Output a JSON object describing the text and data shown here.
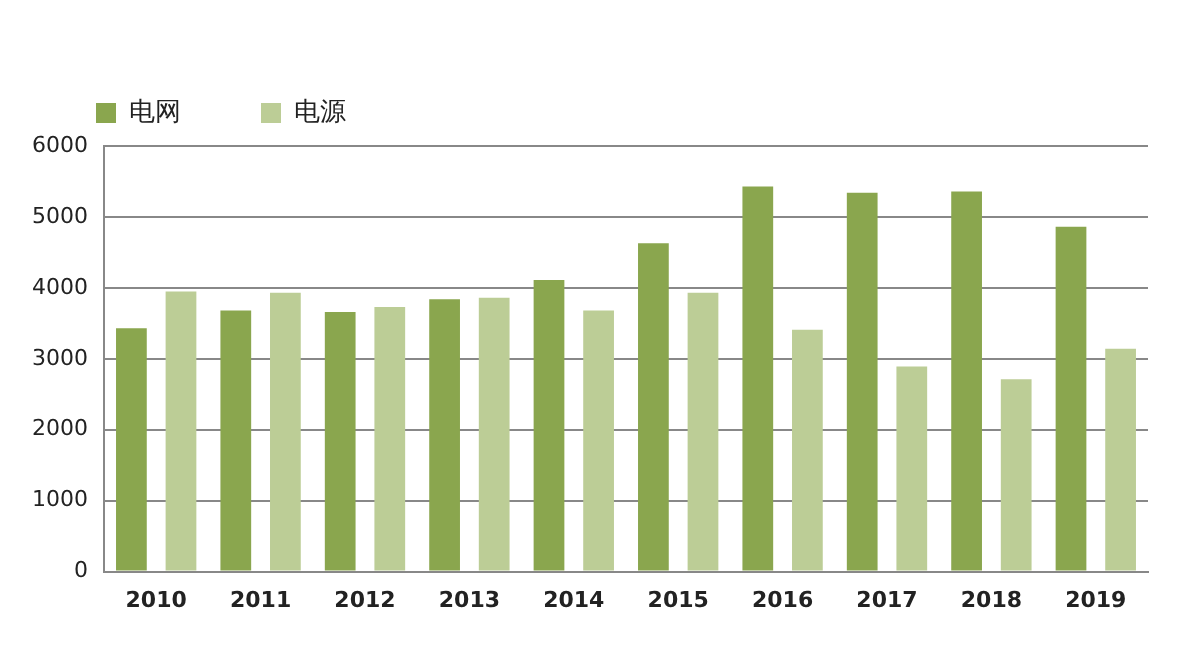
{
  "chart_data": {
    "type": "bar",
    "categories": [
      "2010",
      "2011",
      "2012",
      "2013",
      "2014",
      "2015",
      "2016",
      "2017",
      "2018",
      "2019"
    ],
    "series": [
      {
        "name": "电网",
        "color": "#8aa64e",
        "values": [
          3430,
          3680,
          3660,
          3840,
          4110,
          4630,
          5430,
          5340,
          5360,
          4860
        ]
      },
      {
        "name": "电源",
        "color": "#bccd96",
        "values": [
          3950,
          3930,
          3730,
          3860,
          3680,
          3930,
          3410,
          2890,
          2710,
          3140
        ]
      }
    ],
    "ylim": [
      0,
      6000
    ],
    "yticks": [
      0,
      1000,
      2000,
      3000,
      4000,
      5000,
      6000
    ],
    "grid": "y",
    "legend": "top left"
  }
}
